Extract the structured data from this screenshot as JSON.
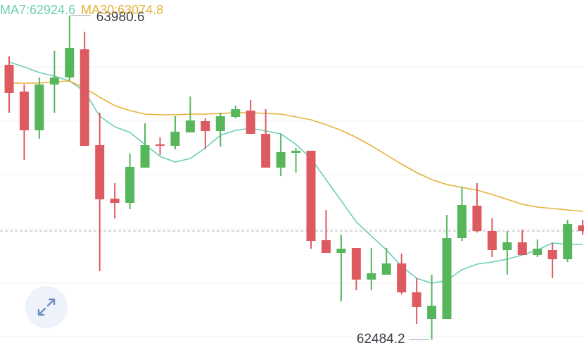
{
  "chart_data": {
    "type": "candlestick",
    "up_color": "#57b65c",
    "down_color": "#dc5a60",
    "ylim": [
      62412.7,
      64052.2
    ],
    "gridlines": [
      63743.1,
      63492.7,
      63245.4,
      62995.0,
      62744.5,
      62497.3
    ],
    "open": [
      63752.9,
      63629.3,
      63450.4,
      63661.8,
      63694.3,
      63824.5,
      63382.1,
      63134.8,
      63115.3,
      63278.0,
      63385.4,
      63378.8,
      63440.6,
      63492.7,
      63447.1,
      63512.2,
      63541.5,
      63434.1,
      63278.0,
      63346.3,
      63356.1,
      62942.8,
      62884.3,
      62907.1,
      62760.7,
      62783.5,
      62835.5,
      62702.1,
      62578.5,
      62578.5,
      62952.6,
      63102.3,
      62985.1,
      62897.3,
      62933.1,
      62874.6,
      62897.3,
      62855.0,
      63011.2
    ],
    "high": [
      63791.9,
      63661.8,
      63694.3,
      63818.0,
      63980.6,
      63905.8,
      63531.7,
      63206.4,
      63343.0,
      63482.9,
      63417.9,
      63515.4,
      63606.5,
      63505.7,
      63531.7,
      63564.2,
      63590.2,
      63548.0,
      63434.1,
      63369.1,
      63356.1,
      63082.8,
      62968.9,
      62907.1,
      62907.1,
      62907.1,
      62881.1,
      62767.2,
      62783.5,
      63060.0,
      63190.1,
      63206.4,
      63043.7,
      62985.1,
      62991.7,
      62946.1,
      62929.8,
      63037.2,
      63037.2
    ],
    "low": [
      63531.7,
      63313.8,
      63411.4,
      63531.7,
      63678.1,
      63378.8,
      62799.7,
      63043.7,
      63086.0,
      63278.0,
      63336.5,
      63362.6,
      63440.6,
      63362.6,
      63375.6,
      63505.7,
      63434.1,
      63278.0,
      63238.9,
      63255.2,
      62903.8,
      62884.3,
      62659.8,
      62711.9,
      62711.9,
      62783.5,
      62692.4,
      62555.7,
      62484.2,
      62578.5,
      62939.6,
      62978.6,
      62864.8,
      62783.5,
      62874.6,
      62864.8,
      62767.2,
      62842.0,
      62968.9
    ],
    "close": [
      63622.8,
      63450.4,
      63661.8,
      63694.3,
      63830.9,
      63378.8,
      63131.6,
      63115.3,
      63281.3,
      63382.1,
      63378.8,
      63443.9,
      63495.9,
      63447.1,
      63515.4,
      63548.0,
      63434.1,
      63278.0,
      63349.6,
      63356.1,
      62939.6,
      62884.3,
      62903.8,
      62760.7,
      62790.0,
      62835.5,
      62702.1,
      62633.8,
      62640.3,
      62952.6,
      63105.5,
      62985.1,
      62897.3,
      62933.1,
      62874.6,
      62903.8,
      62855.0,
      63017.7,
      62985.1
    ],
    "series": [
      {
        "name": "MA7:62924.6",
        "color": "#6ccfb6",
        "values": [
          63765.9,
          63743.1,
          63717.1,
          63700.8,
          63678.1,
          63629.3,
          63515.4,
          63466.6,
          63440.6,
          63385.4,
          63330.0,
          63304.0,
          63320.3,
          63369.1,
          63427.6,
          63450.4,
          63460.1,
          63447.1,
          63434.1,
          63385.4,
          63320.3,
          63222.6,
          63125.0,
          63027.5,
          62962.4,
          62897.3,
          62822.5,
          62767.2,
          62744.5,
          62757.5,
          62806.3,
          62832.3,
          62842.0,
          62855.0,
          62874.6,
          62897.3,
          62929.8,
          62923.3,
          62923.3
        ]
      },
      {
        "name": "MA30:63074.8",
        "color": "#e6b23a",
        "values": [
          63668.3,
          63668.3,
          63668.3,
          63674.8,
          63678.1,
          63645.5,
          63603.3,
          63564.2,
          63541.5,
          63525.2,
          63522.0,
          63522.0,
          63525.2,
          63525.2,
          63528.4,
          63531.7,
          63531.7,
          63528.4,
          63525.2,
          63512.2,
          63499.2,
          63476.4,
          63450.4,
          63417.9,
          63378.8,
          63336.5,
          63294.2,
          63255.2,
          63222.6,
          63199.9,
          63186.8,
          63173.8,
          63154.3,
          63131.6,
          63108.8,
          63095.8,
          63089.3,
          63082.8,
          63076.3
        ]
      }
    ]
  }
}
